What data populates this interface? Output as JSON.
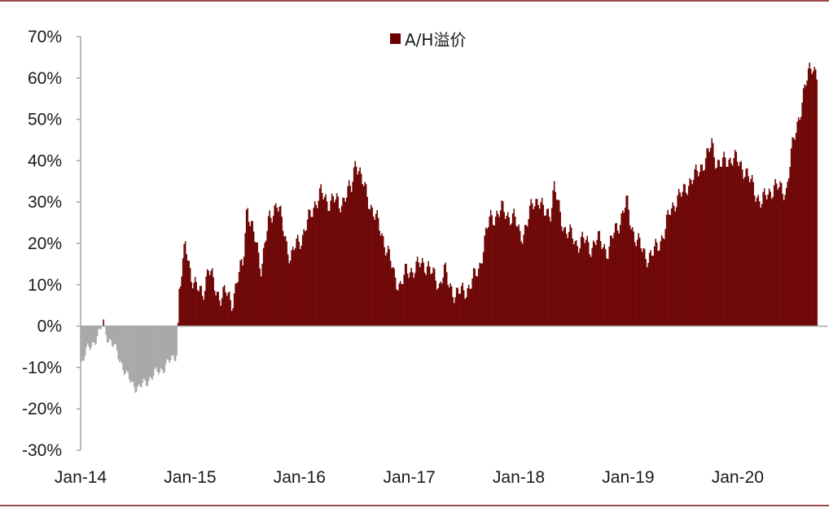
{
  "chart_data": {
    "type": "area",
    "title": "",
    "xlabel": "",
    "ylabel": "",
    "ylim": [
      -30,
      70
    ],
    "y_unit": "%",
    "yticks": [
      70,
      60,
      50,
      40,
      30,
      20,
      10,
      0,
      -10,
      -20,
      -30
    ],
    "yticklabels": [
      "70%",
      "60%",
      "50%",
      "40%",
      "30%",
      "20%",
      "10%",
      "0%",
      "-10%",
      "-20%",
      "-30%"
    ],
    "xlim": [
      "2014-01",
      "2020-09"
    ],
    "xticks": [
      "2014-01",
      "2015-01",
      "2016-01",
      "2017-01",
      "2018-01",
      "2019-01",
      "2020-01"
    ],
    "xticklabels": [
      "Jan-14",
      "Jan-15",
      "Jan-16",
      "Jan-17",
      "Jan-18",
      "Jan-19",
      "Jan-20"
    ],
    "grid": false,
    "legend": {
      "position": "top-center",
      "entries": [
        {
          "label": "A/H溢价",
          "color": "#6b0000"
        }
      ]
    },
    "colors": {
      "positive": "#6b0000",
      "negative": "#a6a6a6",
      "axis": "#a6a6a6"
    },
    "series": [
      {
        "name": "A/H溢价",
        "points": [
          [
            "2014-01-02",
            -9
          ],
          [
            "2014-01-20",
            -6
          ],
          [
            "2014-02-10",
            -4
          ],
          [
            "2014-03-01",
            -2
          ],
          [
            "2014-03-15",
            0.5
          ],
          [
            "2014-04-01",
            -3
          ],
          [
            "2014-04-20",
            -5
          ],
          [
            "2014-05-10",
            -8
          ],
          [
            "2014-06-01",
            -12
          ],
          [
            "2014-06-20",
            -14
          ],
          [
            "2014-07-10",
            -15
          ],
          [
            "2014-08-01",
            -14
          ],
          [
            "2014-08-25",
            -12
          ],
          [
            "2014-09-20",
            -11
          ],
          [
            "2014-10-15",
            -9
          ],
          [
            "2014-11-05",
            -8
          ],
          [
            "2014-11-18",
            -6
          ],
          [
            "2014-11-22",
            8
          ],
          [
            "2014-12-05",
            14
          ],
          [
            "2014-12-15",
            20
          ],
          [
            "2014-12-22",
            17
          ],
          [
            "2015-01-05",
            12
          ],
          [
            "2015-01-20",
            9
          ],
          [
            "2015-02-10",
            8
          ],
          [
            "2015-03-01",
            14
          ],
          [
            "2015-03-20",
            10
          ],
          [
            "2015-04-10",
            7
          ],
          [
            "2015-05-01",
            8
          ],
          [
            "2015-05-20",
            6
          ],
          [
            "2015-06-10",
            12
          ],
          [
            "2015-06-25",
            16
          ],
          [
            "2015-07-08",
            30
          ],
          [
            "2015-07-20",
            24
          ],
          [
            "2015-08-10",
            20
          ],
          [
            "2015-08-25",
            14
          ],
          [
            "2015-09-20",
            26
          ],
          [
            "2015-10-15",
            30
          ],
          [
            "2015-11-05",
            24
          ],
          [
            "2015-12-01",
            16
          ],
          [
            "2015-12-20",
            20
          ],
          [
            "2016-01-10",
            22
          ],
          [
            "2016-02-01",
            26
          ],
          [
            "2016-02-20",
            30
          ],
          [
            "2016-03-10",
            32
          ],
          [
            "2016-04-01",
            30
          ],
          [
            "2016-04-20",
            31
          ],
          [
            "2016-05-10",
            29
          ],
          [
            "2016-06-01",
            32
          ],
          [
            "2016-06-20",
            33
          ],
          [
            "2016-07-05",
            41
          ],
          [
            "2016-07-25",
            35
          ],
          [
            "2016-08-20",
            30
          ],
          [
            "2016-09-10",
            26
          ],
          [
            "2016-10-01",
            22
          ],
          [
            "2016-10-20",
            18
          ],
          [
            "2016-11-10",
            12
          ],
          [
            "2016-12-01",
            10
          ],
          [
            "2016-12-20",
            13
          ],
          [
            "2017-01-15",
            14
          ],
          [
            "2017-02-10",
            15
          ],
          [
            "2017-03-01",
            15
          ],
          [
            "2017-03-20",
            12
          ],
          [
            "2017-04-10",
            10
          ],
          [
            "2017-04-25",
            14
          ],
          [
            "2017-05-10",
            10
          ],
          [
            "2017-06-01",
            8
          ],
          [
            "2017-06-20",
            8
          ],
          [
            "2017-07-10",
            9
          ],
          [
            "2017-07-30",
            11
          ],
          [
            "2017-08-20",
            14
          ],
          [
            "2017-09-05",
            20
          ],
          [
            "2017-09-25",
            26
          ],
          [
            "2017-10-15",
            27
          ],
          [
            "2017-11-05",
            28
          ],
          [
            "2017-11-25",
            27
          ],
          [
            "2017-12-15",
            26
          ],
          [
            "2018-01-05",
            22
          ],
          [
            "2018-01-25",
            24
          ],
          [
            "2018-02-15",
            30
          ],
          [
            "2018-03-05",
            31
          ],
          [
            "2018-03-25",
            27
          ],
          [
            "2018-04-15",
            28
          ],
          [
            "2018-04-28",
            34
          ],
          [
            "2018-05-10",
            29
          ],
          [
            "2018-05-30",
            24
          ],
          [
            "2018-06-20",
            22
          ],
          [
            "2018-07-10",
            20
          ],
          [
            "2018-08-01",
            21
          ],
          [
            "2018-08-25",
            19
          ],
          [
            "2018-09-15",
            21
          ],
          [
            "2018-10-05",
            20
          ],
          [
            "2018-10-25",
            18
          ],
          [
            "2018-11-15",
            23
          ],
          [
            "2018-12-05",
            26
          ],
          [
            "2018-12-25",
            30
          ],
          [
            "2019-01-05",
            26
          ],
          [
            "2019-01-20",
            22
          ],
          [
            "2019-02-10",
            19
          ],
          [
            "2019-03-01",
            17
          ],
          [
            "2019-03-20",
            17
          ],
          [
            "2019-04-10",
            20
          ],
          [
            "2019-05-01",
            23
          ],
          [
            "2019-05-20",
            28
          ],
          [
            "2019-06-10",
            31
          ],
          [
            "2019-07-01",
            32
          ],
          [
            "2019-07-20",
            35
          ],
          [
            "2019-08-10",
            36
          ],
          [
            "2019-09-01",
            39
          ],
          [
            "2019-09-20",
            41
          ],
          [
            "2019-10-05",
            44
          ],
          [
            "2019-10-20",
            40
          ],
          [
            "2019-11-05",
            39
          ],
          [
            "2019-11-25",
            40
          ],
          [
            "2019-12-15",
            41
          ],
          [
            "2020-01-05",
            39
          ],
          [
            "2020-01-25",
            38
          ],
          [
            "2020-02-10",
            35
          ],
          [
            "2020-03-01",
            32
          ],
          [
            "2020-03-20",
            30
          ],
          [
            "2020-04-10",
            32
          ],
          [
            "2020-04-30",
            34
          ],
          [
            "2020-05-20",
            33
          ],
          [
            "2020-06-10",
            33
          ],
          [
            "2020-06-25",
            41
          ],
          [
            "2020-07-10",
            47
          ],
          [
            "2020-07-25",
            52
          ],
          [
            "2020-08-10",
            57
          ],
          [
            "2020-08-25",
            62
          ],
          [
            "2020-09-05",
            64
          ],
          [
            "2020-09-20",
            60
          ]
        ]
      }
    ]
  }
}
